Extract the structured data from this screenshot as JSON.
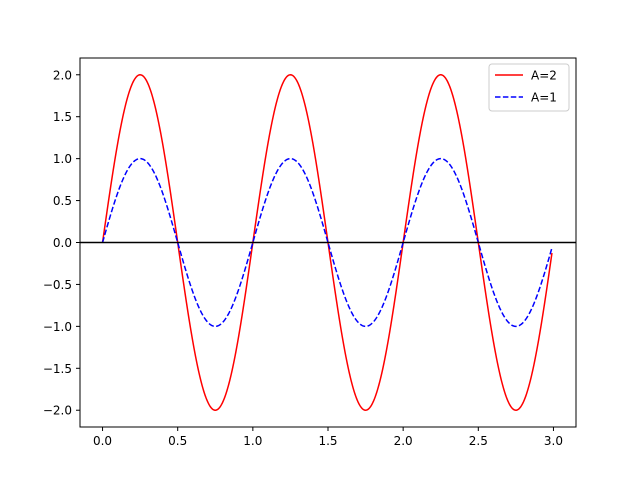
{
  "chart_data": {
    "type": "line",
    "title": "",
    "xlabel": "",
    "ylabel": "",
    "xlim": [
      -0.15,
      3.15
    ],
    "ylim": [
      -2.2,
      2.2
    ],
    "xticks": [
      0.0,
      0.5,
      1.0,
      1.5,
      2.0,
      2.5,
      3.0
    ],
    "yticks": [
      -2.0,
      -1.5,
      -1.0,
      -0.5,
      0.0,
      0.5,
      1.0,
      1.5,
      2.0
    ],
    "x_tick_labels": [
      "0.0",
      "0.5",
      "1.0",
      "1.5",
      "2.0",
      "2.5",
      "3.0"
    ],
    "y_tick_labels": [
      "−2.0",
      "−1.5",
      "−1.0",
      "−0.5",
      "0.0",
      "0.5",
      "1.0",
      "1.5",
      "2.0"
    ],
    "grid": false,
    "legend_position": "upper right",
    "x_domain": [
      0.0,
      2.99
    ],
    "frequency": 1,
    "reference_line": {
      "y": 0.0,
      "color": "#000000"
    },
    "series": [
      {
        "name": "A=2",
        "amplitude": 2,
        "color": "#ff0000",
        "style": "solid"
      },
      {
        "name": "A=1",
        "amplitude": 1,
        "color": "#0000ff",
        "style": "dashed"
      }
    ]
  }
}
